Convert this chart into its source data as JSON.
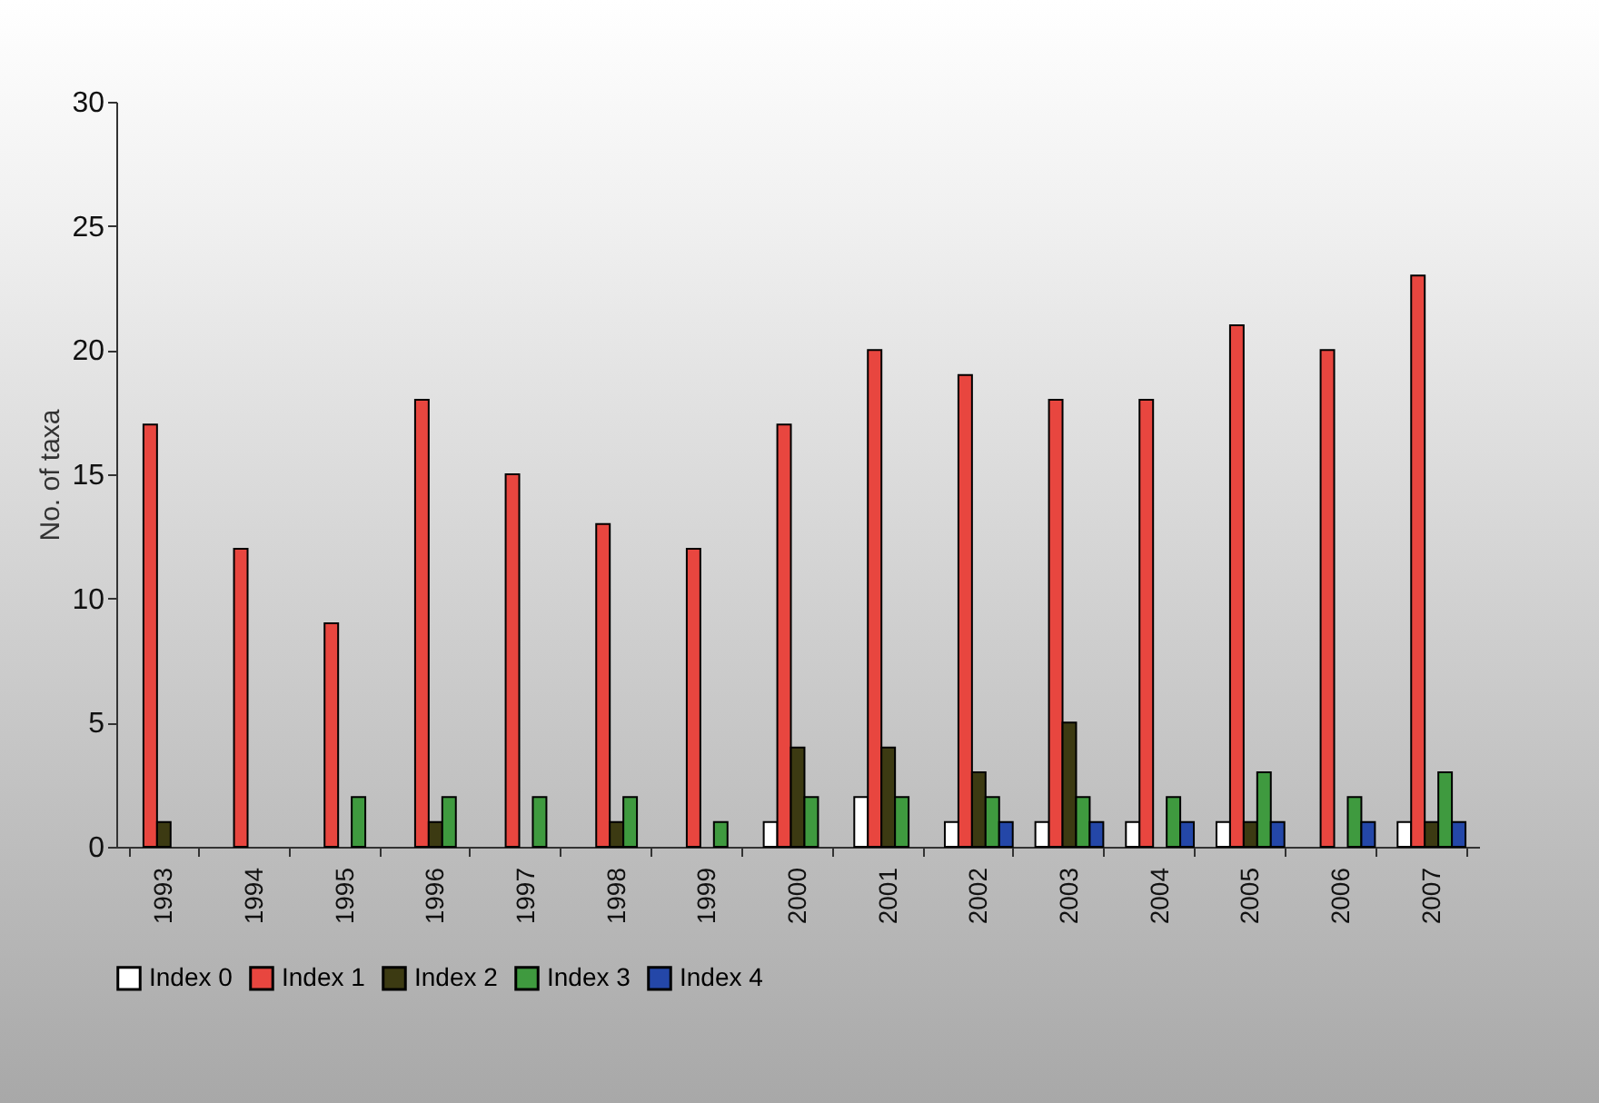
{
  "chart_data": {
    "type": "bar",
    "ylabel": "No. of taxa",
    "categories": [
      "1993",
      "1994",
      "1995",
      "1996",
      "1997",
      "1998",
      "1999",
      "2000",
      "2001",
      "2002",
      "2003",
      "2004",
      "2005",
      "2006",
      "2007"
    ],
    "series": [
      {
        "name": "Index 0",
        "color": "#ffffff",
        "values": [
          0,
          0,
          0,
          0,
          0,
          0,
          0,
          1,
          2,
          1,
          1,
          1,
          1,
          0,
          1
        ]
      },
      {
        "name": "Index 1",
        "color": "#e8463f",
        "values": [
          17,
          12,
          9,
          18,
          15,
          13,
          12,
          17,
          20,
          19,
          18,
          18,
          21,
          20,
          23
        ]
      },
      {
        "name": "Index 2",
        "color": "#3c3a12",
        "values": [
          1,
          0,
          0,
          1,
          0,
          1,
          0,
          4,
          4,
          3,
          5,
          0,
          1,
          0,
          1
        ]
      },
      {
        "name": "Index 3",
        "color": "#3f9a3f",
        "values": [
          0,
          0,
          2,
          2,
          2,
          2,
          1,
          2,
          2,
          2,
          2,
          2,
          3,
          2,
          3
        ]
      },
      {
        "name": "Index 4",
        "color": "#2447a8",
        "values": [
          0,
          0,
          0,
          0,
          0,
          0,
          0,
          0,
          0,
          1,
          1,
          1,
          1,
          1,
          1
        ]
      }
    ],
    "ylim": [
      0,
      30
    ],
    "yticks": [
      0,
      5,
      10,
      15,
      20,
      25,
      30
    ],
    "grid": false,
    "legend": "bottom"
  }
}
